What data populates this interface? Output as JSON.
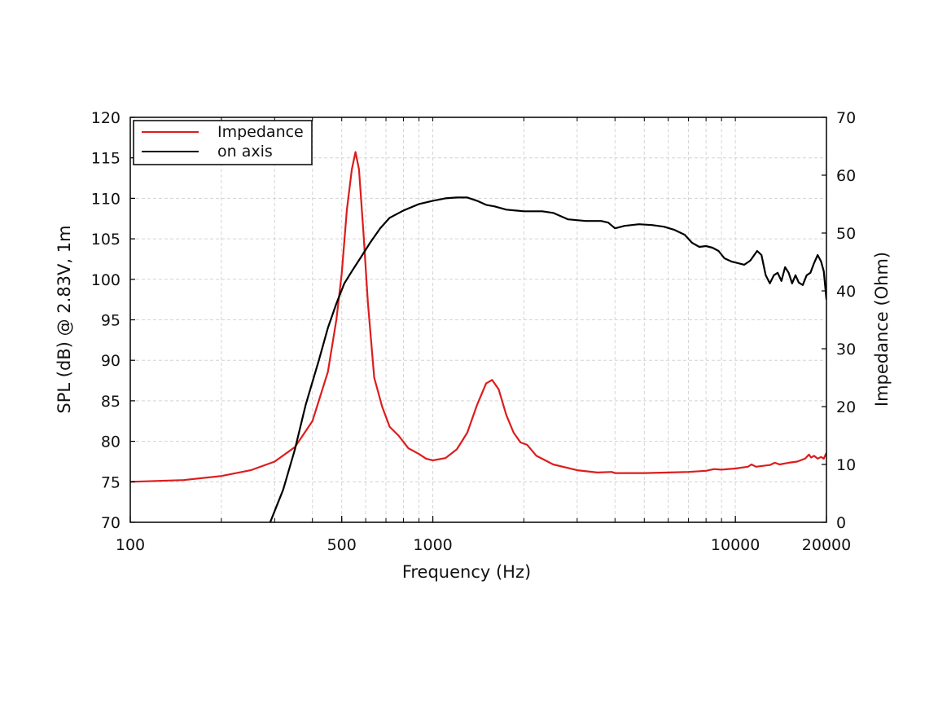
{
  "chart_data": {
    "type": "line",
    "title": "",
    "xlabel": "Frequency (Hz)",
    "ylabel_left": "SPL (dB) @ 2.83V, 1m",
    "ylabel_right": "Impedance (Ohm)",
    "xscale": "log",
    "xlim": [
      100,
      20000
    ],
    "ylim_left": [
      70,
      120
    ],
    "ylim_right": [
      0,
      70
    ],
    "x_ticks": [
      {
        "value": 100,
        "label": "100"
      },
      {
        "value": 500,
        "label": "500"
      },
      {
        "value": 1000,
        "label": "1000"
      },
      {
        "value": 10000,
        "label": "10000"
      },
      {
        "value": 20000,
        "label": "20000"
      }
    ],
    "y_ticks_left": [
      "70",
      "75",
      "80",
      "85",
      "90",
      "95",
      "100",
      "105",
      "110",
      "115",
      "120"
    ],
    "y_ticks_right": [
      "0",
      "10",
      "20",
      "30",
      "40",
      "50",
      "60",
      "70"
    ],
    "grid": true,
    "legend_position": "top-left",
    "series": [
      {
        "name": "Impedance",
        "axis": "right",
        "color": "#dd1c1c",
        "points": [
          [
            100,
            7.0
          ],
          [
            150,
            7.3
          ],
          [
            200,
            8.0
          ],
          [
            250,
            9.0
          ],
          [
            300,
            10.5
          ],
          [
            350,
            13.0
          ],
          [
            400,
            17.5
          ],
          [
            450,
            26
          ],
          [
            480,
            35
          ],
          [
            500,
            43
          ],
          [
            520,
            54
          ],
          [
            540,
            61
          ],
          [
            555,
            64
          ],
          [
            570,
            61
          ],
          [
            590,
            50
          ],
          [
            610,
            38
          ],
          [
            640,
            25
          ],
          [
            680,
            20
          ],
          [
            720,
            16.5
          ],
          [
            770,
            15
          ],
          [
            830,
            12.8
          ],
          [
            900,
            11.8
          ],
          [
            950,
            11.0
          ],
          [
            1000,
            10.7
          ],
          [
            1100,
            11.1
          ],
          [
            1200,
            12.6
          ],
          [
            1300,
            15.5
          ],
          [
            1400,
            20.3
          ],
          [
            1500,
            24.0
          ],
          [
            1570,
            24.6
          ],
          [
            1650,
            23.0
          ],
          [
            1750,
            18.5
          ],
          [
            1850,
            15.5
          ],
          [
            1950,
            13.8
          ],
          [
            2050,
            13.4
          ],
          [
            2200,
            11.5
          ],
          [
            2500,
            10.0
          ],
          [
            3000,
            9.0
          ],
          [
            3500,
            8.6
          ],
          [
            3900,
            8.7
          ],
          [
            4000,
            8.5
          ],
          [
            5000,
            8.5
          ],
          [
            6000,
            8.6
          ],
          [
            7000,
            8.7
          ],
          [
            8000,
            8.9
          ],
          [
            8500,
            9.2
          ],
          [
            9000,
            9.1
          ],
          [
            10000,
            9.3
          ],
          [
            11000,
            9.6
          ],
          [
            11300,
            10.0
          ],
          [
            11700,
            9.6
          ],
          [
            13000,
            9.9
          ],
          [
            13500,
            10.3
          ],
          [
            14000,
            10.0
          ],
          [
            15000,
            10.3
          ],
          [
            16000,
            10.5
          ],
          [
            17000,
            11.0
          ],
          [
            17500,
            11.7
          ],
          [
            17800,
            11.2
          ],
          [
            18200,
            11.5
          ],
          [
            18700,
            11.0
          ],
          [
            19200,
            11.3
          ],
          [
            19600,
            11.0
          ],
          [
            20000,
            12.0
          ]
        ]
      },
      {
        "name": "on axis",
        "axis": "left",
        "color": "#000000",
        "points": [
          [
            290,
            70
          ],
          [
            320,
            74
          ],
          [
            350,
            79
          ],
          [
            380,
            84.5
          ],
          [
            420,
            90
          ],
          [
            450,
            94
          ],
          [
            480,
            97
          ],
          [
            510,
            99.5
          ],
          [
            540,
            101
          ],
          [
            580,
            102.8
          ],
          [
            620,
            104.5
          ],
          [
            670,
            106.3
          ],
          [
            720,
            107.6
          ],
          [
            800,
            108.5
          ],
          [
            900,
            109.3
          ],
          [
            1000,
            109.7
          ],
          [
            1100,
            110.0
          ],
          [
            1200,
            110.1
          ],
          [
            1300,
            110.1
          ],
          [
            1400,
            109.7
          ],
          [
            1500,
            109.2
          ],
          [
            1600,
            109.0
          ],
          [
            1750,
            108.6
          ],
          [
            2000,
            108.4
          ],
          [
            2300,
            108.4
          ],
          [
            2500,
            108.2
          ],
          [
            2800,
            107.4
          ],
          [
            3200,
            107.2
          ],
          [
            3600,
            107.2
          ],
          [
            3800,
            107.0
          ],
          [
            4000,
            106.3
          ],
          [
            4300,
            106.6
          ],
          [
            4800,
            106.8
          ],
          [
            5300,
            106.7
          ],
          [
            5800,
            106.5
          ],
          [
            6300,
            106.1
          ],
          [
            6800,
            105.5
          ],
          [
            7200,
            104.5
          ],
          [
            7600,
            104.0
          ],
          [
            8000,
            104.1
          ],
          [
            8400,
            103.9
          ],
          [
            8800,
            103.5
          ],
          [
            9200,
            102.6
          ],
          [
            9700,
            102.2
          ],
          [
            10200,
            102.0
          ],
          [
            10700,
            101.8
          ],
          [
            11200,
            102.3
          ],
          [
            11800,
            103.5
          ],
          [
            12200,
            103.0
          ],
          [
            12600,
            100.5
          ],
          [
            13000,
            99.5
          ],
          [
            13400,
            100.5
          ],
          [
            13800,
            100.8
          ],
          [
            14200,
            99.8
          ],
          [
            14600,
            101.5
          ],
          [
            15000,
            100.8
          ],
          [
            15400,
            99.5
          ],
          [
            15800,
            100.5
          ],
          [
            16200,
            99.6
          ],
          [
            16700,
            99.3
          ],
          [
            17200,
            100.5
          ],
          [
            17700,
            100.8
          ],
          [
            18200,
            102.0
          ],
          [
            18700,
            103.0
          ],
          [
            19200,
            102.2
          ],
          [
            19600,
            101.0
          ],
          [
            20000,
            97.5
          ]
        ]
      }
    ]
  }
}
